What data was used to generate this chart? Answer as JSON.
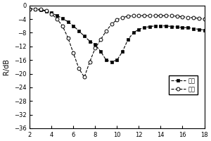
{
  "title": "",
  "xlabel": "",
  "ylabel": "R/dB",
  "xlim": [
    2,
    18
  ],
  "ylim": [
    -36,
    0
  ],
  "xticks": [
    2,
    4,
    6,
    8,
    10,
    12,
    14,
    16,
    18
  ],
  "yticks": [
    0,
    -4,
    -8,
    -12,
    -16,
    -20,
    -24,
    -28,
    -32,
    -36
  ],
  "calc_x": [
    2.0,
    2.5,
    3.0,
    3.5,
    4.0,
    4.5,
    5.0,
    5.5,
    6.0,
    6.5,
    7.0,
    7.5,
    8.0,
    8.5,
    9.0,
    9.5,
    10.0,
    10.5,
    11.0,
    11.5,
    12.0,
    12.5,
    13.0,
    13.5,
    14.0,
    14.5,
    15.0,
    15.5,
    16.0,
    16.5,
    17.0,
    17.5,
    18.0
  ],
  "calc_y": [
    -1.0,
    -1.2,
    -1.4,
    -1.7,
    -2.2,
    -3.0,
    -3.8,
    -4.8,
    -6.0,
    -7.5,
    -9.0,
    -10.5,
    -11.5,
    -13.5,
    -16.0,
    -16.5,
    -16.0,
    -13.5,
    -10.0,
    -8.0,
    -7.0,
    -6.5,
    -6.2,
    -6.0,
    -6.0,
    -6.0,
    -6.2,
    -6.3,
    -6.5,
    -6.5,
    -6.8,
    -7.0,
    -7.2
  ],
  "meas_x": [
    2.0,
    2.5,
    3.0,
    3.5,
    4.0,
    4.5,
    5.0,
    5.5,
    6.0,
    6.5,
    7.0,
    7.5,
    8.0,
    8.5,
    9.0,
    9.5,
    10.0,
    10.5,
    11.0,
    11.5,
    12.0,
    12.5,
    13.0,
    13.5,
    14.0,
    14.5,
    15.0,
    15.5,
    16.0,
    16.5,
    17.0,
    17.5,
    18.0
  ],
  "meas_y": [
    -1.0,
    -1.0,
    -1.2,
    -1.5,
    -2.5,
    -4.0,
    -6.0,
    -9.5,
    -14.0,
    -18.5,
    -21.0,
    -16.5,
    -12.5,
    -10.0,
    -7.5,
    -5.5,
    -4.2,
    -3.5,
    -3.2,
    -3.0,
    -3.0,
    -3.0,
    -3.0,
    -3.0,
    -3.0,
    -3.0,
    -3.0,
    -3.2,
    -3.3,
    -3.5,
    -3.6,
    -3.8,
    -4.0
  ],
  "calc_color": "black",
  "meas_color": "black",
  "legend_calc": "计算",
  "legend_meas": "实测",
  "bg_color": "white"
}
